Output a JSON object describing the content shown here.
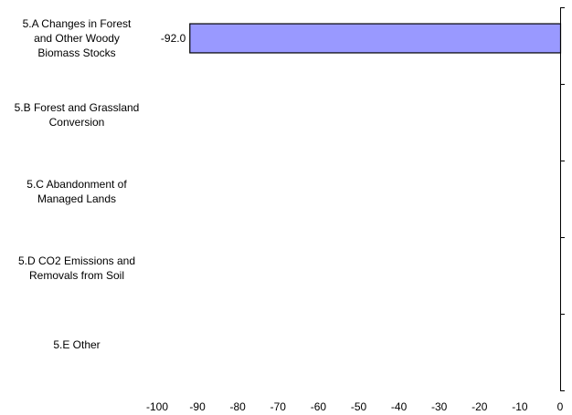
{
  "chart_data": {
    "type": "bar",
    "orientation": "horizontal",
    "title": "",
    "xlabel": "",
    "ylabel": "",
    "categories": [
      [
        "5.A Changes in Forest",
        "and Other Woody",
        "Biomass Stocks"
      ],
      [
        "5.B Forest and Grassland",
        "Conversion"
      ],
      [
        "5.C Abandonment of",
        "Managed Lands"
      ],
      [
        "5.D CO2 Emissions and",
        "Removals from Soil"
      ],
      [
        "5.E Other"
      ]
    ],
    "values": [
      -92.0,
      null,
      null,
      null,
      null
    ],
    "data_labels": [
      "-92.0",
      "",
      "",
      "",
      ""
    ],
    "xlim": [
      -100,
      0
    ],
    "xticks": [
      "-100",
      "-90",
      "-80",
      "-70",
      "-60",
      "-50",
      "-40",
      "-30",
      "-20",
      "-10",
      "0"
    ],
    "bar_color": "#9999ff",
    "bar_edge_color": "#000000",
    "grid": false,
    "legend": "none"
  }
}
